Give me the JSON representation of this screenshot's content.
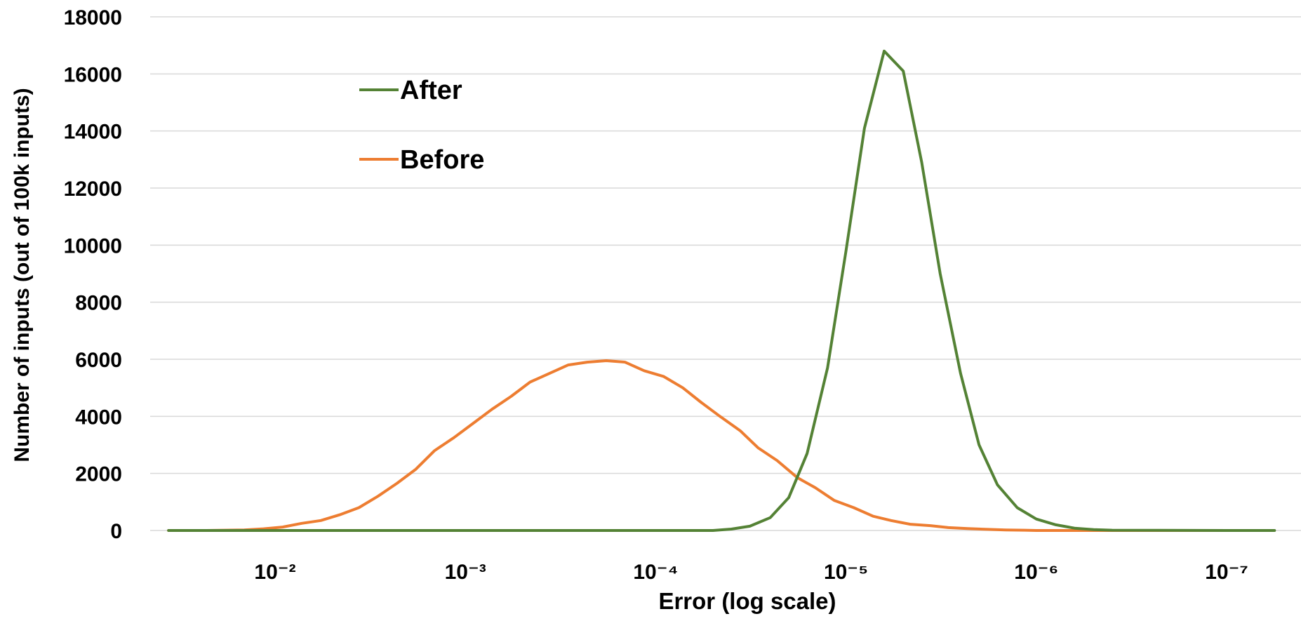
{
  "chart_data": {
    "type": "line",
    "xlabel": "Error (log scale)",
    "ylabel": "Number of inputs (out of 100k inputs)",
    "x_scale": "log-reversed",
    "xlim": [
      0.04,
      1e-07
    ],
    "ylim": [
      0,
      18000
    ],
    "y_ticks": [
      0,
      2000,
      4000,
      6000,
      8000,
      10000,
      12000,
      14000,
      16000,
      18000
    ],
    "x_ticks": [
      {
        "value": 0.01,
        "label": "10⁻²"
      },
      {
        "value": 0.001,
        "label": "10⁻³"
      },
      {
        "value": 0.0001,
        "label": "10⁻⁴"
      },
      {
        "value": 1e-05,
        "label": "10⁻⁵"
      },
      {
        "value": 1e-06,
        "label": "10⁻⁶"
      },
      {
        "value": 1e-07,
        "label": "10⁻⁷"
      }
    ],
    "grid": {
      "horizontal": true,
      "vertical": false
    },
    "legend_position": "top-left",
    "series": [
      {
        "name": "After",
        "color": "#548235",
        "points": [
          [
            0.0363,
            0
          ],
          [
            0.0138,
            0
          ],
          [
            0.00525,
            0
          ],
          [
            0.002,
            0
          ],
          [
            0.000759,
            0
          ],
          [
            0.000288,
            0
          ],
          [
            0.00011,
            0
          ],
          [
            6.9e-05,
            0
          ],
          [
            5e-05,
            0
          ],
          [
            4e-05,
            50
          ],
          [
            3.2e-05,
            150
          ],
          [
            2.5e-05,
            450
          ],
          [
            2e-05,
            1150
          ],
          [
            1.6e-05,
            2700
          ],
          [
            1.25e-05,
            5700
          ],
          [
            1e-05,
            9800
          ],
          [
            8e-06,
            14100
          ],
          [
            6.3e-06,
            16800
          ],
          [
            5e-06,
            16100
          ],
          [
            4e-06,
            12900
          ],
          [
            3.2e-06,
            9000
          ],
          [
            2.5e-06,
            5500
          ],
          [
            2e-06,
            3000
          ],
          [
            1.6e-06,
            1600
          ],
          [
            1.26e-06,
            800
          ],
          [
            1e-06,
            400
          ],
          [
            7.9e-07,
            200
          ],
          [
            6.3e-07,
            80
          ],
          [
            5e-07,
            30
          ],
          [
            4e-07,
            10
          ],
          [
            1e-07,
            0
          ],
          [
            5.6e-08,
            0
          ]
        ]
      },
      {
        "name": "Before",
        "color": "#ED7D31",
        "points": [
          [
            0.0363,
            0
          ],
          [
            0.0229,
            0
          ],
          [
            0.0145,
            20
          ],
          [
            0.0115,
            60
          ],
          [
            0.00912,
            120
          ],
          [
            0.00724,
            250
          ],
          [
            0.00575,
            350
          ],
          [
            0.00457,
            550
          ],
          [
            0.00363,
            800
          ],
          [
            0.00288,
            1200
          ],
          [
            0.00229,
            1650
          ],
          [
            0.00182,
            2150
          ],
          [
            0.00145,
            2800
          ],
          [
            0.00115,
            3250
          ],
          [
            0.000912,
            3750
          ],
          [
            0.000724,
            4250
          ],
          [
            0.000575,
            4700
          ],
          [
            0.000457,
            5200
          ],
          [
            0.000363,
            5500
          ],
          [
            0.000288,
            5800
          ],
          [
            0.000229,
            5900
          ],
          [
            0.000182,
            5950
          ],
          [
            0.000145,
            5900
          ],
          [
            0.000115,
            5600
          ],
          [
            9.1e-05,
            5400
          ],
          [
            7.2e-05,
            5000
          ],
          [
            5.8e-05,
            4500
          ],
          [
            4.6e-05,
            4000
          ],
          [
            3.6e-05,
            3500
          ],
          [
            2.9e-05,
            2900
          ],
          [
            2.3e-05,
            2450
          ],
          [
            1.8e-05,
            1850
          ],
          [
            1.45e-05,
            1500
          ],
          [
            1.15e-05,
            1050
          ],
          [
            9.1e-06,
            800
          ],
          [
            7.2e-06,
            500
          ],
          [
            5.8e-06,
            350
          ],
          [
            4.6e-06,
            220
          ],
          [
            3.6e-06,
            170
          ],
          [
            2.9e-06,
            100
          ],
          [
            2.3e-06,
            70
          ],
          [
            1.8e-06,
            40
          ],
          [
            1.45e-06,
            20
          ],
          [
            1.15e-06,
            10
          ],
          [
            1e-06,
            0
          ],
          [
            1e-07,
            0
          ]
        ]
      }
    ]
  }
}
